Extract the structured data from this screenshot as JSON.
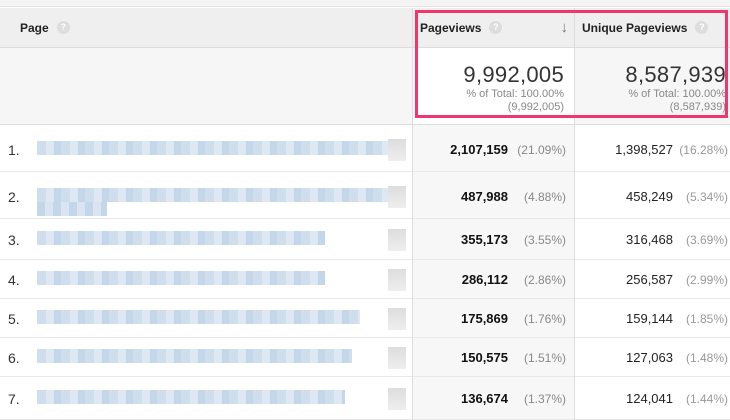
{
  "header": {
    "page": "Page",
    "pageviews": "Pageviews",
    "unique_pageviews": "Unique Pageviews",
    "help": "?",
    "sort_icon": "arrow-down"
  },
  "totals": {
    "pageviews": {
      "value": "9,992,005",
      "pct": "% of Total: 100.00%",
      "total": "(9,992,005)"
    },
    "unique": {
      "value": "8,587,939",
      "pct": "% of Total: 100.00%",
      "total": "(8,587,939)"
    }
  },
  "highlight_color": "#f0356f",
  "rows": [
    {
      "n": "1.",
      "pv": "2,107,159",
      "pvp": "(21.09%)",
      "uv": "1,398,527",
      "uvp": "(16.28%)"
    },
    {
      "n": "2.",
      "pv": "487,988",
      "pvp": "(4.88%)",
      "uv": "458,249",
      "uvp": "(5.34%)"
    },
    {
      "n": "3.",
      "pv": "355,173",
      "pvp": "(3.55%)",
      "uv": "316,468",
      "uvp": "(3.69%)"
    },
    {
      "n": "4.",
      "pv": "286,112",
      "pvp": "(2.86%)",
      "uv": "256,587",
      "uvp": "(2.99%)"
    },
    {
      "n": "5.",
      "pv": "175,869",
      "pvp": "(1.76%)",
      "uv": "159,144",
      "uvp": "(1.85%)"
    },
    {
      "n": "6.",
      "pv": "150,575",
      "pvp": "(1.51%)",
      "uv": "127,063",
      "uvp": "(1.48%)"
    },
    {
      "n": "7.",
      "pv": "136,674",
      "pvp": "(1.37%)",
      "uv": "124,041",
      "uvp": "(1.44%)"
    }
  ]
}
